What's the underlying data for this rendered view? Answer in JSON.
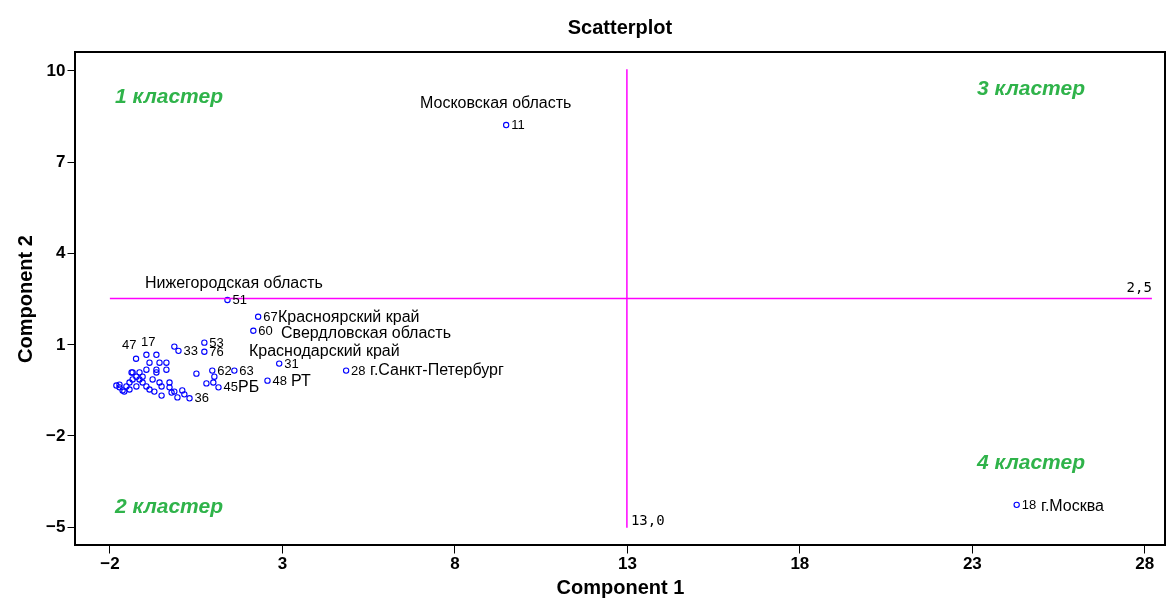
{
  "chart_data": {
    "type": "scatter",
    "title": "Scatterplot",
    "xlabel": "Component 1",
    "ylabel": "Component 2",
    "xlim": [
      -3,
      28.6
    ],
    "ylim": [
      -5.6,
      10.6
    ],
    "xticks": [
      -2,
      3,
      8,
      13,
      18,
      23,
      28
    ],
    "yticks": [
      -5,
      -2,
      1,
      4,
      7,
      10
    ],
    "marker": "circle",
    "series": [
      {
        "color": "#0000ff",
        "x": [
          9.5,
          1.42,
          2.31,
          2.17,
          0.75,
          -0.12,
          0.0,
          0.75,
          2.92,
          4.86,
          1.62,
          0.98,
          1.04,
          2.58,
          0.81,
          1.01,
          1.16,
          0.52,
          24.3,
          -1.23,
          -0.93,
          -0.64,
          -0.84,
          -0.55,
          -0.35,
          -0.35,
          -0.64,
          -0.93,
          -0.26,
          -0.49,
          -0.7,
          -0.49,
          -0.2,
          -0.12,
          0.11,
          0.17,
          0.32,
          -0.03,
          -0.26,
          -1.8,
          -1.71,
          -1.62,
          -1.51,
          -1.42,
          -1.33,
          -1.22,
          -1.13,
          -1.04,
          -0.93,
          -0.84,
          -1.42,
          -1.22,
          -1.04,
          -0.75,
          -0.64,
          -0.55,
          -1.33,
          -1.13,
          -1.71,
          -1.57,
          -1.36
        ],
        "values": [
          8.2,
          2.45,
          1.9,
          1.44,
          1.05,
          0.92,
          0.78,
          0.75,
          0.36,
          0.13,
          0.13,
          0.13,
          -0.07,
          -0.2,
          -0.29,
          -0.26,
          -0.42,
          0.03,
          -4.28,
          0.52,
          0.65,
          0.65,
          0.39,
          0.39,
          0.39,
          0.16,
          0.16,
          0.16,
          -0.26,
          -0.39,
          -0.56,
          -0.69,
          -0.59,
          -0.56,
          -0.52,
          -0.65,
          -0.78,
          -0.75,
          -0.42,
          -0.36,
          -0.42,
          -0.52,
          -0.39,
          -0.26,
          -0.16,
          -0.07,
          -0.16,
          -0.26,
          -0.39,
          -0.49,
          -0.49,
          -0.39,
          -0.07,
          -0.16,
          0.07,
          -0.26,
          0.07,
          0.07,
          -0.33,
          -0.56,
          0.07
        ]
      }
    ],
    "ref_lines": [
      {
        "axis": "x",
        "value": 13,
        "label": "13,0",
        "color": "#ff00ff"
      },
      {
        "axis": "y",
        "value": 2.5,
        "label": "2,5",
        "color": "#ff00ff"
      }
    ],
    "annotations": [
      "1 кластер",
      "3 кластер",
      "2 кластер",
      "4 кластер",
      "Московская область",
      "Нижегородская область",
      "Красноярский край",
      "Свердловская область",
      "Краснодарский край",
      "г.Санкт-Петербург",
      "РТ",
      "РБ",
      "г.Москва",
      "47",
      "17",
      {
        "text": "11",
        "x": 9.5,
        "y": 8.2
      },
      {
        "text": "51",
        "x": 1.42,
        "y": 2.45
      },
      {
        "text": "67",
        "x": 2.31,
        "y": 1.9
      },
      {
        "text": "60",
        "x": 2.17,
        "y": 1.44
      },
      {
        "text": "53",
        "x": 0.75,
        "y": 1.05
      },
      {
        "text": "33",
        "x": 0.0,
        "y": 0.78
      },
      {
        "text": "76",
        "x": 0.75,
        "y": 0.75
      },
      {
        "text": "62",
        "x": 0.98,
        "y": 0.13
      },
      {
        "text": "63",
        "x": 1.62,
        "y": 0.13
      },
      {
        "text": "31",
        "x": 2.92,
        "y": 0.36
      },
      {
        "text": "28",
        "x": 4.86,
        "y": 0.13
      },
      {
        "text": "48",
        "x": 2.58,
        "y": -0.2
      },
      {
        "text": "45",
        "x": 1.16,
        "y": -0.42
      },
      {
        "text": "36",
        "x": 0.32,
        "y": -0.78
      },
      {
        "text": "18",
        "x": 24.3,
        "y": -4.28
      }
    ]
  }
}
